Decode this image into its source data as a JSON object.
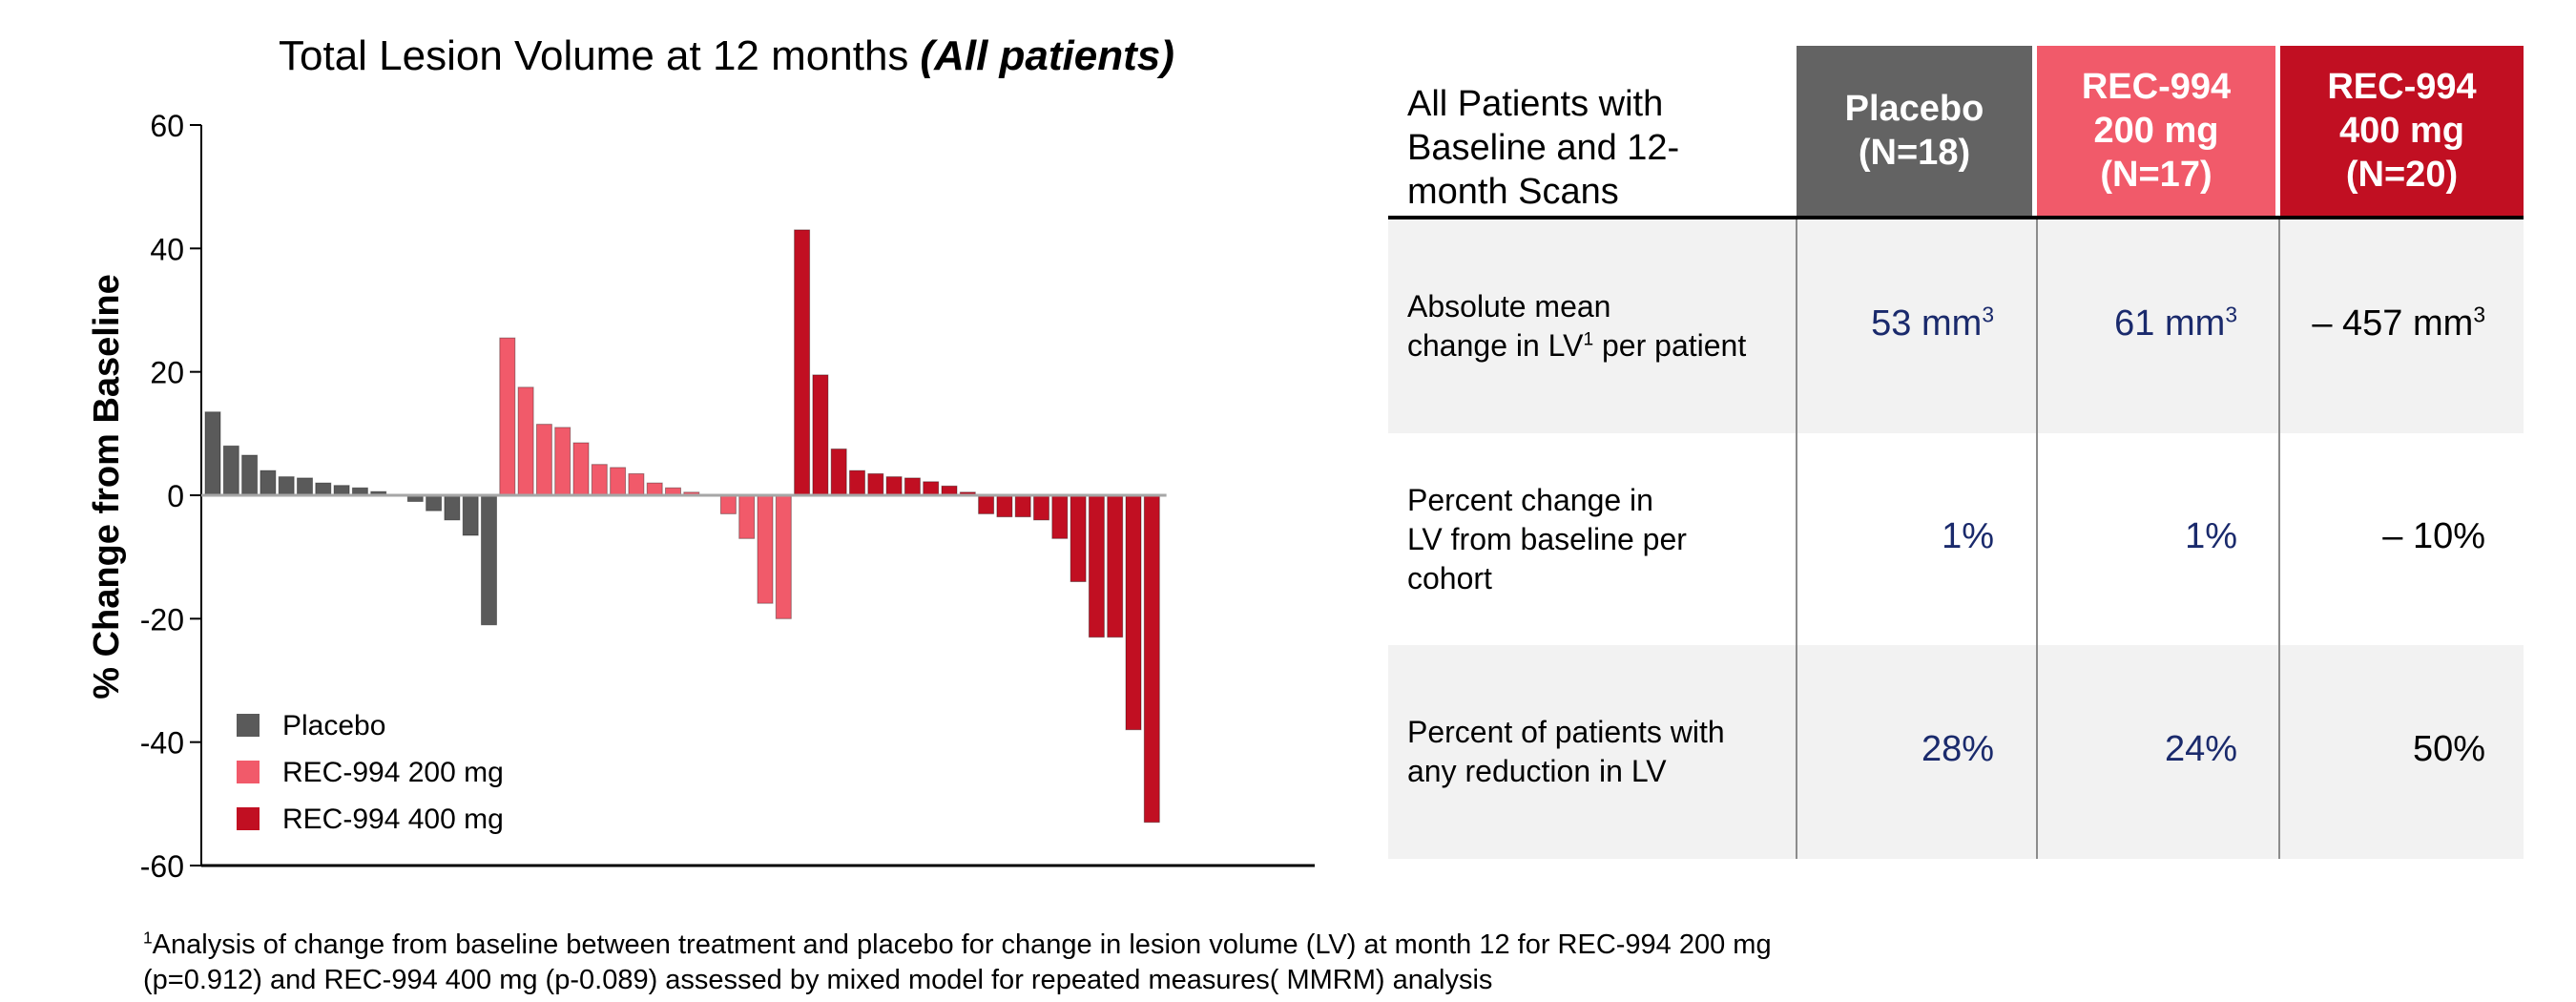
{
  "chart_data": {
    "type": "bar",
    "title": "Total Lesion Volume at 12 months",
    "title_emphasis": "(All patients)",
    "ylabel": "% Change from Baseline",
    "xlabel": "",
    "ylim": [
      -60,
      60
    ],
    "yticks": [
      "60",
      "40",
      "20",
      "0",
      "-20",
      "-40",
      "-60"
    ],
    "ytick_values": [
      60,
      40,
      20,
      0,
      -20,
      -40,
      -60
    ],
    "grid": false,
    "legend_position": "bottom-left",
    "series": [
      {
        "name": "Placebo",
        "color": "#5a5a5a",
        "values": [
          13.5,
          8,
          6.5,
          4,
          3,
          2.8,
          2,
          1.6,
          1.2,
          0.6,
          0,
          -1,
          -2.5,
          -4,
          -6.5,
          -21
        ]
      },
      {
        "name": "REC-994 200 mg",
        "color": "#f15a6a",
        "values": [
          25.5,
          17.5,
          11.5,
          11,
          8.5,
          5,
          4.5,
          3.5,
          2,
          1.2,
          0.5,
          0,
          -3,
          -7,
          -17.5,
          -20
        ]
      },
      {
        "name": "REC-994 400 mg",
        "color": "#c10f22",
        "values": [
          43,
          19.5,
          7.5,
          4,
          3.5,
          3,
          2.8,
          2.2,
          1.5,
          0.5,
          -3,
          -3.5,
          -3.5,
          -4,
          -7,
          -14,
          -23,
          -23,
          -38,
          -53
        ]
      }
    ]
  },
  "table": {
    "header_label": [
      "All Patients with",
      "Baseline and 12-",
      "month Scans"
    ],
    "columns": [
      {
        "lines": [
          "Placebo",
          "(N=18)"
        ],
        "color": "#636363"
      },
      {
        "lines": [
          "REC-994",
          "200 mg",
          "(N=17)"
        ],
        "color": "#f15a6a"
      },
      {
        "lines": [
          "REC-994",
          "400 mg",
          "(N=20)"
        ],
        "color": "#c10f22"
      }
    ],
    "rows": [
      {
        "label_line1": "Absolute mean",
        "label_line2_pre": "change in LV",
        "label_line2_sup": "1",
        "label_line2_post": " per patient",
        "values": [
          "53 mm",
          "61 mm",
          "– 457 mm"
        ],
        "value_sup": "3",
        "shaded": true
      },
      {
        "label": [
          "Percent change in",
          "LV from baseline per",
          "cohort"
        ],
        "values": [
          "1%",
          "1%",
          "– 10%"
        ],
        "shaded": false
      },
      {
        "label": [
          "Percent of patients with",
          "any reduction in LV"
        ],
        "values": [
          "28%",
          "24%",
          "50%"
        ],
        "shaded": true
      }
    ],
    "value_colors": [
      "#1a2a6c",
      "#1a2a6c",
      "#000000"
    ],
    "band_color": "#f2f2f2"
  },
  "footnote": {
    "sup": "1",
    "line1": "Analysis of change from baseline between treatment and placebo for change in lesion volume (LV) at month 12 for REC-994 200 mg",
    "line2": "(p=0.912) and REC-994 400 mg (p-0.089) assessed by mixed model for repeated measures( MMRM) analysis"
  }
}
